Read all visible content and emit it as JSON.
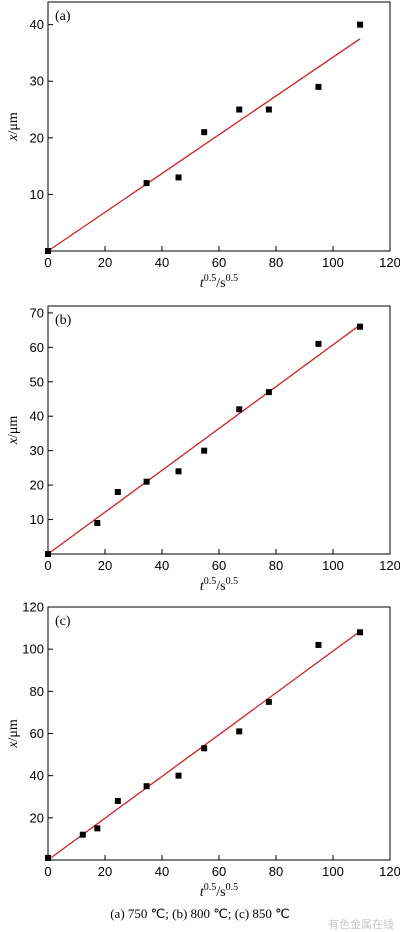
{
  "chart_data": [
    {
      "type": "scatter",
      "panel_label": "(a)",
      "xlabel_base": "t",
      "xlabel_exp": "0.5",
      "xlabel_unit": "/s",
      "xlabel_unit_exp": "0.5",
      "ylabel_var": "x",
      "ylabel_unit": "/μm",
      "xlim": [
        0,
        120
      ],
      "ylim": [
        0,
        44
      ],
      "xticks": [
        0,
        20,
        40,
        60,
        80,
        100,
        120
      ],
      "yticks": [
        10,
        20,
        30,
        40
      ],
      "points": [
        [
          0,
          0
        ],
        [
          34.6,
          12
        ],
        [
          45.8,
          13
        ],
        [
          54.8,
          21
        ],
        [
          67.1,
          25
        ],
        [
          77.5,
          25
        ],
        [
          94.9,
          29
        ],
        [
          109.5,
          40
        ]
      ],
      "fit_line": [
        [
          0,
          0
        ],
        [
          109.5,
          37.5
        ]
      ],
      "colors": {
        "points": "#000000",
        "line": "#cc2222"
      }
    },
    {
      "type": "scatter",
      "panel_label": "(b)",
      "xlabel_base": "t",
      "xlabel_exp": "0.5",
      "xlabel_unit": "/s",
      "xlabel_unit_exp": "0.5",
      "ylabel_var": "x",
      "ylabel_unit": "/μm",
      "xlim": [
        0,
        120
      ],
      "ylim": [
        0,
        72
      ],
      "xticks": [
        0,
        20,
        40,
        60,
        80,
        100,
        120
      ],
      "yticks": [
        10,
        20,
        30,
        40,
        50,
        60,
        70
      ],
      "points": [
        [
          0,
          0
        ],
        [
          17.3,
          9
        ],
        [
          24.5,
          18
        ],
        [
          34.6,
          21
        ],
        [
          45.8,
          24
        ],
        [
          54.8,
          30
        ],
        [
          67.1,
          42
        ],
        [
          77.5,
          47
        ],
        [
          94.9,
          61
        ],
        [
          109.5,
          66
        ]
      ],
      "fit_line": [
        [
          0,
          0
        ],
        [
          109.5,
          66.5
        ]
      ],
      "colors": {
        "points": "#000000",
        "line": "#cc2222"
      }
    },
    {
      "type": "scatter",
      "panel_label": "(c)",
      "xlabel_base": "t",
      "xlabel_exp": "0.5",
      "xlabel_unit": "/s",
      "xlabel_unit_exp": "0.5",
      "ylabel_var": "x",
      "ylabel_unit": "/μm",
      "xlim": [
        0,
        120
      ],
      "ylim": [
        0,
        120
      ],
      "xticks": [
        0,
        20,
        40,
        60,
        80,
        100,
        120
      ],
      "yticks": [
        20,
        40,
        60,
        80,
        100,
        120
      ],
      "points": [
        [
          0,
          1
        ],
        [
          12.2,
          12
        ],
        [
          17.3,
          15
        ],
        [
          24.5,
          28
        ],
        [
          34.6,
          35
        ],
        [
          45.8,
          40
        ],
        [
          54.8,
          53
        ],
        [
          67.1,
          61
        ],
        [
          77.5,
          75
        ],
        [
          94.9,
          102
        ],
        [
          109.5,
          108
        ]
      ],
      "fit_line": [
        [
          0,
          0
        ],
        [
          109.5,
          108.5
        ]
      ],
      "colors": {
        "points": "#000000",
        "line": "#cc2222"
      }
    }
  ],
  "caption": "(a) 750 ℃; (b) 800 ℃; (c) 850 ℃",
  "watermark": "有色金属在线"
}
